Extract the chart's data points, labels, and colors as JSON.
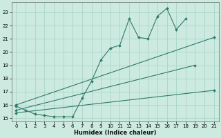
{
  "xlabel": "Humidex (Indice chaleur)",
  "bg_color": "#cceae0",
  "grid_color": "#aad4c8",
  "line_color": "#2d7a6a",
  "marker": "D",
  "marker_size": 2.0,
  "lw": 0.8,
  "x_all": [
    0,
    1,
    2,
    3,
    4,
    5,
    6,
    7,
    8,
    9,
    10,
    11,
    12,
    13,
    14,
    15,
    16,
    17,
    18,
    19,
    20,
    21
  ],
  "series1": [
    15.9,
    15.6,
    15.3,
    15.2,
    15.1,
    15.1,
    15.1,
    16.5,
    17.8,
    19.4,
    20.3,
    20.5,
    22.5,
    21.1,
    21.0,
    22.7,
    23.3,
    21.7,
    22.5,
    null,
    null,
    null
  ],
  "series2": [
    16.0,
    null,
    null,
    null,
    null,
    null,
    null,
    null,
    null,
    null,
    null,
    null,
    null,
    null,
    null,
    null,
    null,
    null,
    null,
    null,
    null,
    21.1
  ],
  "series3": [
    15.6,
    null,
    null,
    null,
    null,
    null,
    null,
    null,
    null,
    null,
    null,
    null,
    null,
    null,
    null,
    null,
    null,
    null,
    null,
    19.0,
    null,
    null
  ],
  "series4": [
    15.4,
    null,
    null,
    null,
    null,
    null,
    null,
    null,
    null,
    null,
    null,
    null,
    null,
    null,
    null,
    null,
    null,
    null,
    null,
    null,
    null,
    17.1
  ],
  "xlim": [
    -0.5,
    21.5
  ],
  "ylim": [
    14.75,
    23.75
  ],
  "xticks": [
    0,
    1,
    2,
    3,
    4,
    5,
    6,
    7,
    8,
    9,
    10,
    11,
    12,
    13,
    14,
    15,
    16,
    17,
    18,
    19,
    20,
    21
  ],
  "yticks": [
    15,
    16,
    17,
    18,
    19,
    20,
    21,
    22,
    23
  ],
  "xlabel_fontsize": 6.0,
  "tick_fontsize": 5.0
}
